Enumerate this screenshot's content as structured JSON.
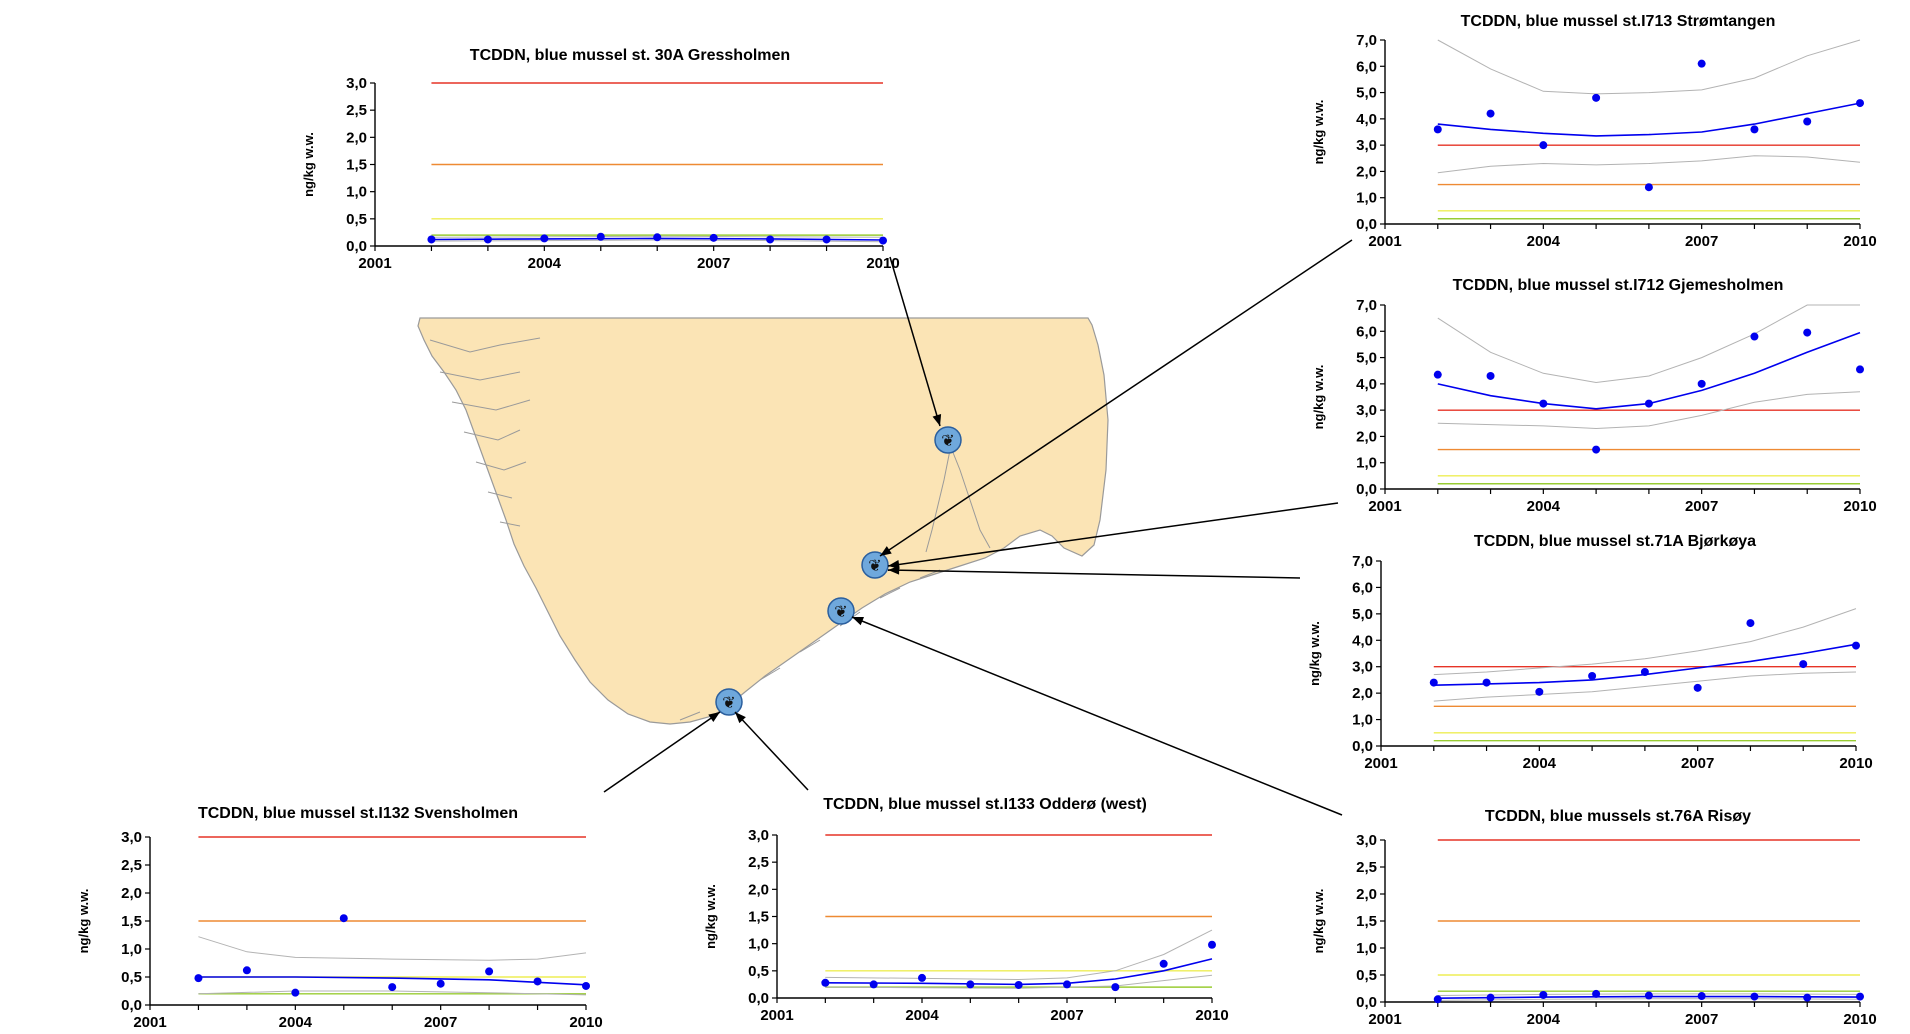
{
  "colors": {
    "series": "#0000ee",
    "ci": "#b3b3b3",
    "red_line": "#e63326",
    "orange_line": "#ee8a33",
    "yellow_line": "#eeee55",
    "green_line": "#99cc33",
    "map_land": "#fbe4b5",
    "map_coast": "#9a9a9a",
    "marker": "#6fa8dc"
  },
  "chart_data": [
    {
      "id": "30A",
      "type": "line",
      "title": "TCDDN, blue mussel st. 30A  Gressholmen",
      "ylabel": "ng/kg w.w.",
      "xlim": [
        2001,
        2010
      ],
      "ylim": [
        0,
        3.0
      ],
      "yticks": [
        "0,0",
        "0,5",
        "1,0",
        "1,5",
        "2,0",
        "2,5",
        "3,0"
      ],
      "xticks": [
        "2001",
        "2004",
        "2007",
        "2010"
      ],
      "reference_lines": {
        "red": 3.0,
        "orange": 1.5,
        "yellow": 0.5,
        "green": 0.2
      },
      "points": {
        "x": [
          2002,
          2003,
          2004,
          2005,
          2006,
          2007,
          2008,
          2009,
          2010
        ],
        "y": [
          0.12,
          0.12,
          0.14,
          0.17,
          0.16,
          0.15,
          0.12,
          0.12,
          0.1
        ]
      },
      "trend": {
        "x": [
          2002,
          2004,
          2006,
          2008,
          2010
        ],
        "y": [
          0.12,
          0.13,
          0.14,
          0.13,
          0.11
        ]
      },
      "ci_upper": {
        "x": [
          2002,
          2004,
          2006,
          2008,
          2010
        ],
        "y": [
          0.16,
          0.17,
          0.18,
          0.17,
          0.16
        ]
      },
      "ci_lower": {
        "x": [
          2002,
          2004,
          2006,
          2008,
          2010
        ],
        "y": [
          0.09,
          0.1,
          0.11,
          0.1,
          0.08
        ]
      }
    },
    {
      "id": "I713",
      "type": "line",
      "title": "TCDDN, blue mussel  st.I713  Strømtangen",
      "ylabel": "ng/kg w.w.",
      "xlim": [
        2001,
        2010
      ],
      "ylim": [
        0,
        7.0
      ],
      "yticks": [
        "0,0",
        "1,0",
        "2,0",
        "3,0",
        "4,0",
        "5,0",
        "6,0",
        "7,0"
      ],
      "xticks": [
        "2001",
        "2004",
        "2007",
        "2010"
      ],
      "reference_lines": {
        "red": 3.0,
        "orange": 1.5,
        "yellow": 0.5,
        "green": 0.2
      },
      "points": {
        "x": [
          2002,
          2003,
          2004,
          2005,
          2006,
          2007,
          2008,
          2009,
          2010
        ],
        "y": [
          3.6,
          4.2,
          3.0,
          4.8,
          1.4,
          6.1,
          3.6,
          3.9,
          4.6
        ]
      },
      "trend": {
        "x": [
          2002,
          2003,
          2004,
          2005,
          2006,
          2007,
          2008,
          2009,
          2010
        ],
        "y": [
          3.8,
          3.6,
          3.45,
          3.35,
          3.4,
          3.5,
          3.8,
          4.2,
          4.6
        ]
      },
      "ci_upper": {
        "x": [
          2002,
          2003,
          2004,
          2005,
          2006,
          2007,
          2008,
          2009,
          2010
        ],
        "y": [
          7.0,
          5.9,
          5.05,
          4.95,
          5.0,
          5.1,
          5.55,
          6.4,
          7.2
        ]
      },
      "ci_lower": {
        "x": [
          2002,
          2003,
          2004,
          2005,
          2006,
          2007,
          2008,
          2009,
          2010
        ],
        "y": [
          1.95,
          2.2,
          2.3,
          2.25,
          2.3,
          2.4,
          2.6,
          2.55,
          2.35
        ]
      }
    },
    {
      "id": "I712",
      "type": "line",
      "title": "TCDDN, blue mussel  st.I712  Gjemesholmen",
      "ylabel": "ng/kg w.w.",
      "xlim": [
        2001,
        2010
      ],
      "ylim": [
        0,
        7.0
      ],
      "yticks": [
        "0,0",
        "1,0",
        "2,0",
        "3,0",
        "4,0",
        "5,0",
        "6,0",
        "7,0"
      ],
      "xticks": [
        "2001",
        "2004",
        "2007",
        "2010"
      ],
      "reference_lines": {
        "red": 3.0,
        "orange": 1.5,
        "yellow": 0.5,
        "green": 0.2
      },
      "points": {
        "x": [
          2002,
          2003,
          2004,
          2005,
          2006,
          2007,
          2008,
          2009,
          2010
        ],
        "y": [
          4.35,
          4.3,
          3.25,
          1.5,
          3.25,
          4.0,
          5.8,
          5.95,
          4.55
        ]
      },
      "trend": {
        "x": [
          2002,
          2003,
          2004,
          2005,
          2006,
          2007,
          2008,
          2009,
          2010
        ],
        "y": [
          4.0,
          3.55,
          3.25,
          3.05,
          3.25,
          3.75,
          4.4,
          5.2,
          5.95
        ]
      },
      "ci_upper": {
        "x": [
          2002,
          2003,
          2004,
          2005,
          2006,
          2007,
          2008,
          2009,
          2010
        ],
        "y": [
          6.5,
          5.2,
          4.4,
          4.05,
          4.3,
          5.0,
          5.9,
          7.0,
          7.2
        ]
      },
      "ci_lower": {
        "x": [
          2002,
          2003,
          2004,
          2005,
          2006,
          2007,
          2008,
          2009,
          2010
        ],
        "y": [
          2.5,
          2.45,
          2.4,
          2.3,
          2.4,
          2.8,
          3.3,
          3.6,
          3.7
        ]
      }
    },
    {
      "id": "71A",
      "type": "line",
      "title": "TCDDN, blue mussel  st.71A  Bjørkøya",
      "ylabel": "ng/kg w.w.",
      "xlim": [
        2001,
        2010
      ],
      "ylim": [
        0,
        7.0
      ],
      "yticks": [
        "0,0",
        "1,0",
        "2,0",
        "3,0",
        "4,0",
        "5,0",
        "6,0",
        "7,0"
      ],
      "xticks": [
        "2001",
        "2004",
        "2007",
        "2010"
      ],
      "reference_lines": {
        "red": 3.0,
        "orange": 1.5,
        "yellow": 0.5,
        "green": 0.2
      },
      "points": {
        "x": [
          2002,
          2003,
          2004,
          2005,
          2006,
          2007,
          2008,
          2009,
          2010
        ],
        "y": [
          2.4,
          2.4,
          2.05,
          2.65,
          2.8,
          2.2,
          4.65,
          3.1,
          3.8
        ]
      },
      "trend": {
        "x": [
          2002,
          2003,
          2004,
          2005,
          2006,
          2007,
          2008,
          2009,
          2010
        ],
        "y": [
          2.3,
          2.35,
          2.4,
          2.5,
          2.7,
          2.95,
          3.2,
          3.5,
          3.85
        ]
      },
      "ci_upper": {
        "x": [
          2002,
          2003,
          2004,
          2005,
          2006,
          2007,
          2008,
          2009,
          2010
        ],
        "y": [
          2.7,
          2.8,
          2.95,
          3.1,
          3.3,
          3.6,
          3.95,
          4.5,
          5.2
        ]
      },
      "ci_lower": {
        "x": [
          2002,
          2003,
          2004,
          2005,
          2006,
          2007,
          2008,
          2009,
          2010
        ],
        "y": [
          1.7,
          1.85,
          1.95,
          2.05,
          2.25,
          2.45,
          2.65,
          2.75,
          2.8
        ]
      }
    },
    {
      "id": "I132",
      "type": "line",
      "title": "TCDDN, blue mussel  st.I132  Svensholmen",
      "ylabel": "ng/kg w.w.",
      "xlim": [
        2001,
        2010
      ],
      "ylim": [
        0,
        3.0
      ],
      "yticks": [
        "0,0",
        "0,5",
        "1,0",
        "1,5",
        "2,0",
        "2,5",
        "3,0"
      ],
      "xticks": [
        "2001",
        "2004",
        "2007",
        "2010"
      ],
      "reference_lines": {
        "red": 3.0,
        "orange": 1.5,
        "yellow": 0.5,
        "green": 0.2
      },
      "points": {
        "x": [
          2002,
          2003,
          2004,
          2005,
          2006,
          2007,
          2008,
          2009,
          2010
        ],
        "y": [
          0.48,
          0.62,
          0.22,
          1.55,
          0.32,
          0.38,
          0.6,
          0.42,
          0.34
        ]
      },
      "trend": {
        "x": [
          2002,
          2004,
          2006,
          2008,
          2010
        ],
        "y": [
          0.5,
          0.5,
          0.48,
          0.45,
          0.36
        ]
      },
      "ci_upper": {
        "x": [
          2002,
          2003,
          2004,
          2006,
          2008,
          2009,
          2010
        ],
        "y": [
          1.22,
          0.95,
          0.85,
          0.82,
          0.8,
          0.82,
          0.93
        ]
      },
      "ci_lower": {
        "x": [
          2002,
          2004,
          2006,
          2008,
          2010
        ],
        "y": [
          0.2,
          0.25,
          0.25,
          0.22,
          0.18
        ]
      }
    },
    {
      "id": "I133",
      "type": "line",
      "title": "TCDDN, blue mussel  st.I133  Odderø (west)",
      "ylabel": "ng/kg w.w.",
      "xlim": [
        2001,
        2010
      ],
      "ylim": [
        0,
        3.0
      ],
      "yticks": [
        "0,0",
        "0,5",
        "1,0",
        "1,5",
        "2,0",
        "2,5",
        "3,0"
      ],
      "xticks": [
        "2001",
        "2004",
        "2007",
        "2010"
      ],
      "reference_lines": {
        "red": 3.0,
        "orange": 1.5,
        "yellow": 0.5,
        "green": 0.2
      },
      "points": {
        "x": [
          2002,
          2003,
          2004,
          2005,
          2006,
          2007,
          2008,
          2009,
          2010
        ],
        "y": [
          0.28,
          0.25,
          0.37,
          0.25,
          0.24,
          0.25,
          0.2,
          0.63,
          0.98
        ]
      },
      "trend": {
        "x": [
          2002,
          2004,
          2006,
          2007,
          2008,
          2009,
          2010
        ],
        "y": [
          0.28,
          0.27,
          0.25,
          0.27,
          0.35,
          0.5,
          0.72
        ]
      },
      "ci_upper": {
        "x": [
          2002,
          2004,
          2006,
          2007,
          2008,
          2009,
          2010
        ],
        "y": [
          0.38,
          0.36,
          0.34,
          0.37,
          0.5,
          0.8,
          1.25
        ]
      },
      "ci_lower": {
        "x": [
          2002,
          2004,
          2006,
          2008,
          2010
        ],
        "y": [
          0.2,
          0.19,
          0.18,
          0.22,
          0.42
        ]
      }
    },
    {
      "id": "76A",
      "type": "line",
      "title": "TCDDN, blue mussels  st.76A  Risøy",
      "ylabel": "ng/kg w.w.",
      "xlim": [
        2001,
        2010
      ],
      "ylim": [
        0,
        3.0
      ],
      "yticks": [
        "0,0",
        "0,5",
        "1,0",
        "1,5",
        "2,0",
        "2,5",
        "3,0"
      ],
      "xticks": [
        "2001",
        "2004",
        "2007",
        "2010"
      ],
      "reference_lines": {
        "red": 3.0,
        "orange": 1.5,
        "yellow": 0.5,
        "green": 0.2
      },
      "points": {
        "x": [
          2002,
          2003,
          2004,
          2005,
          2006,
          2007,
          2008,
          2009,
          2010
        ],
        "y": [
          0.05,
          0.08,
          0.13,
          0.15,
          0.12,
          0.11,
          0.1,
          0.08,
          0.1
        ]
      },
      "trend": {
        "x": [
          2002,
          2004,
          2006,
          2008,
          2010
        ],
        "y": [
          0.07,
          0.09,
          0.1,
          0.1,
          0.09
        ]
      },
      "ci_upper": {
        "x": [
          2002,
          2004,
          2006,
          2008,
          2010
        ],
        "y": [
          0.12,
          0.14,
          0.15,
          0.15,
          0.14
        ]
      },
      "ci_lower": {
        "x": [
          2002,
          2004,
          2006,
          2008,
          2010
        ],
        "y": [
          0.03,
          0.05,
          0.06,
          0.06,
          0.05
        ]
      }
    }
  ]
}
